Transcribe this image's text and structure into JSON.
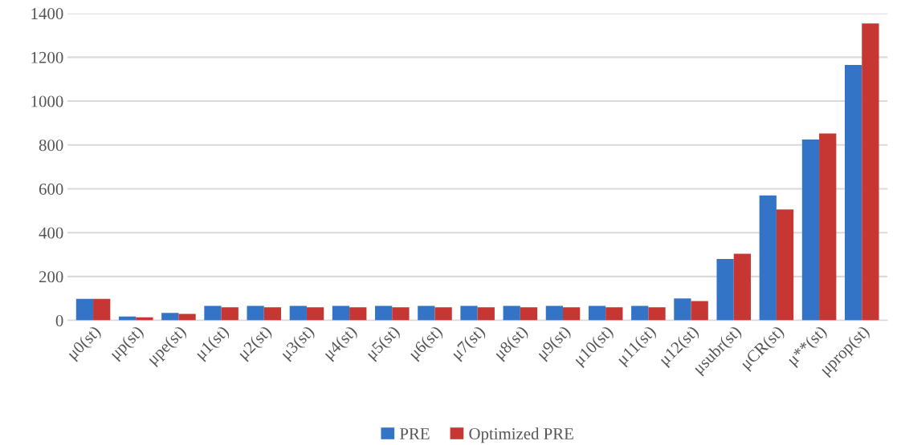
{
  "chart_data": {
    "type": "bar",
    "categories": [
      "μ0(st)",
      "μp(st)",
      "μpe(st)",
      "μ1(st)",
      "μ2(st)",
      "μ3(st)",
      "μ4(st)",
      "μ5(st)",
      "μ6(st)",
      "μ7(st)",
      "μ8(st)",
      "μ9(st)",
      "μ10(st)",
      "μ11(st)",
      "μ12(st)",
      "μsubr(st)",
      "μCR(st)",
      "μ**(st)",
      "μprop(st)"
    ],
    "series": [
      {
        "name": "PRE",
        "color": "#3374c6",
        "values": [
          98,
          18,
          34,
          66,
          66,
          66,
          66,
          66,
          66,
          66,
          66,
          66,
          66,
          66,
          100,
          280,
          570,
          825,
          1165
        ]
      },
      {
        "name": "Optimized PRE",
        "color": "#c63633",
        "values": [
          98,
          14,
          30,
          60,
          60,
          60,
          60,
          60,
          60,
          60,
          60,
          60,
          60,
          60,
          88,
          304,
          506,
          852,
          1354
        ]
      }
    ],
    "ylim": [
      0,
      1400
    ],
    "yticks": [
      0,
      200,
      400,
      600,
      800,
      1000,
      1200,
      1400
    ],
    "grid": "y",
    "legend": "bottom"
  }
}
